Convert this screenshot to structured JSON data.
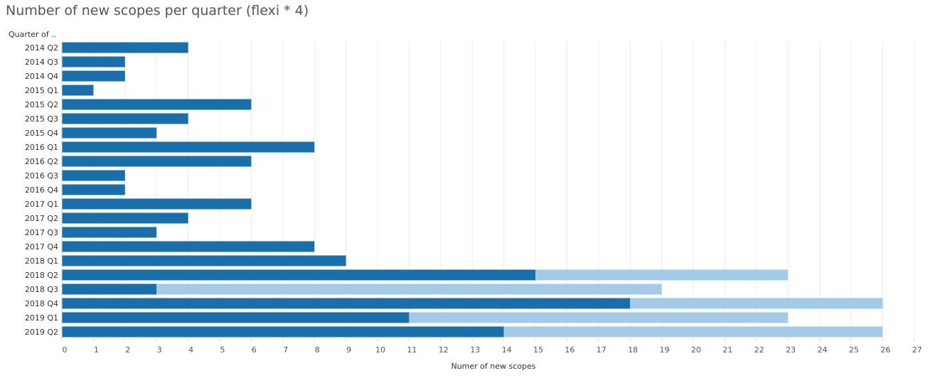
{
  "chart_data": {
    "type": "bar",
    "orientation": "horizontal",
    "stacked": true,
    "title": "Number of new scopes per quarter (flexi * 4)",
    "row_header": "Quarter of ..",
    "xlabel": "Numer of new scopes",
    "xlim": [
      0,
      27
    ],
    "x_ticks": [
      0,
      1,
      2,
      3,
      4,
      5,
      6,
      7,
      8,
      9,
      10,
      11,
      12,
      13,
      14,
      15,
      16,
      17,
      18,
      19,
      20,
      21,
      22,
      23,
      24,
      25,
      26,
      27
    ],
    "grid": true,
    "categories": [
      "2014 Q2",
      "2014 Q3",
      "2014 Q4",
      "2015 Q1",
      "2015 Q2",
      "2015 Q3",
      "2015 Q4",
      "2016 Q1",
      "2016 Q2",
      "2016 Q3",
      "2016 Q4",
      "2017 Q1",
      "2017 Q2",
      "2017 Q3",
      "2017 Q4",
      "2018 Q1",
      "2018 Q2",
      "2018 Q3",
      "2018 Q4",
      "2019 Q1",
      "2019 Q2"
    ],
    "series": [
      {
        "color": "#1a6faa",
        "values": [
          4,
          2,
          2,
          1,
          6,
          4,
          3,
          8,
          6,
          2,
          2,
          6,
          4,
          3,
          8,
          9,
          15,
          3,
          18,
          11,
          14
        ]
      },
      {
        "color": "#a3cbe8",
        "values": [
          0,
          0,
          0,
          0,
          0,
          0,
          0,
          0,
          0,
          0,
          0,
          0,
          0,
          0,
          0,
          0,
          8,
          16,
          8,
          12,
          12
        ]
      }
    ]
  }
}
